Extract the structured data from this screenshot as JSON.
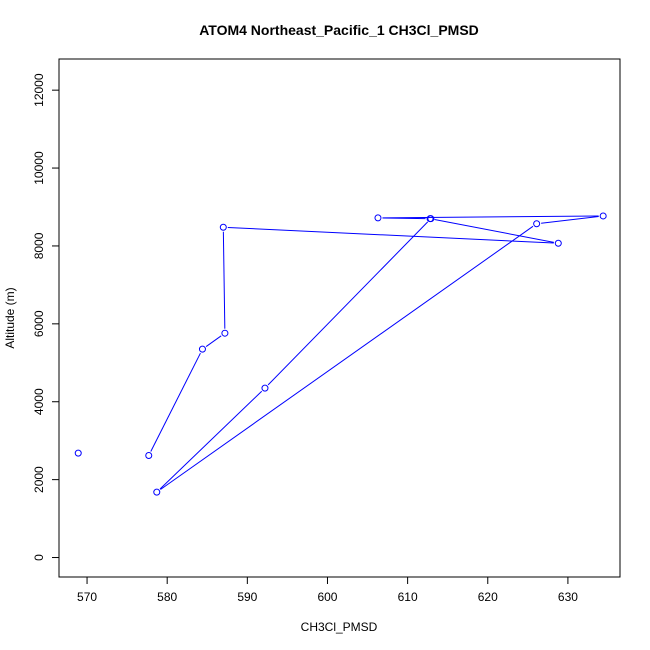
{
  "chart_data": {
    "type": "line",
    "title": "ATOM4 Northeast_Pacific_1 CH3Cl_PMSD",
    "xlabel": "CH3Cl_PMSD",
    "ylabel": "Altitude (m)",
    "xlim": [
      566.5,
      636.5
    ],
    "ylim": [
      -500,
      12800
    ],
    "xticks": [
      570,
      580,
      590,
      600,
      610,
      620,
      630
    ],
    "yticks": [
      0,
      2000,
      4000,
      6000,
      8000,
      10000,
      12000
    ],
    "markers": "open-circle",
    "color": "#0000ff",
    "grid": false,
    "legend": "none",
    "series": [
      {
        "x": [
          612.9,
          592.2,
          578.7,
          626.1,
          634.4,
          606.3,
          612.8,
          628.8,
          587.0,
          587.2,
          584.4,
          577.7
        ],
        "y": [
          8700,
          4350,
          1680,
          8570,
          8770,
          8720,
          8700,
          8070,
          8480,
          5760,
          5350,
          2620
        ]
      },
      {
        "x": [
          568.9
        ],
        "y": [
          2680
        ]
      }
    ]
  }
}
